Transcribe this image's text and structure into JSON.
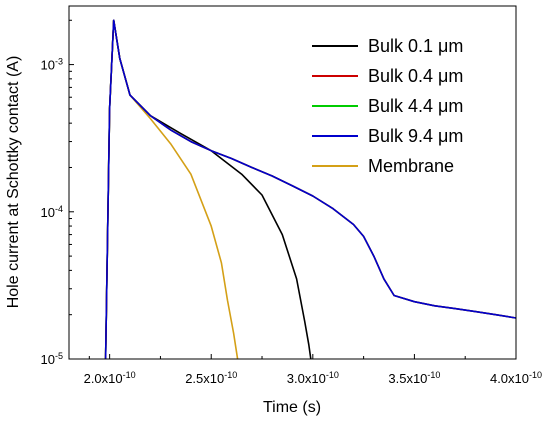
{
  "chart_data": {
    "type": "line",
    "title": "",
    "xlabel": "Time (s)",
    "ylabel": "Hole current at Schottky contact (A)",
    "xlim": [
      1.8e-10,
      4e-10
    ],
    "ylim": [
      1e-05,
      0.0025
    ],
    "yscale": "log",
    "x_ticks": [
      {
        "value": 2e-10,
        "label": "2.0x10-10"
      },
      {
        "value": 2.5e-10,
        "label": "2.5x10-10"
      },
      {
        "value": 3e-10,
        "label": "3.0x10-10"
      },
      {
        "value": 3.5e-10,
        "label": "3.5x10-10"
      },
      {
        "value": 4e-10,
        "label": "4.0x10-10"
      }
    ],
    "y_ticks": [
      {
        "value": 0.001,
        "label": "10-3"
      },
      {
        "value": 0.0001,
        "label": "10-4"
      },
      {
        "value": 1e-05,
        "label": "10-5"
      }
    ],
    "grid": false,
    "legend": "top-right",
    "series": [
      {
        "name": "Bulk 0.1 μm",
        "color": "#000000",
        "x": [
          1.98e-10,
          2e-10,
          2.02e-10,
          2.05e-10,
          2.1e-10,
          2.2e-10,
          2.35e-10,
          2.5e-10,
          2.65e-10,
          2.75e-10,
          2.85e-10,
          2.92e-10,
          2.96e-10,
          2.98e-10,
          2.99e-10
        ],
        "y": [
          1e-05,
          0.0005,
          0.002,
          0.0011,
          0.00062,
          0.00045,
          0.00034,
          0.00026,
          0.00018,
          0.00013,
          7e-05,
          3.5e-05,
          1.8e-05,
          1.25e-05,
          1e-05
        ]
      },
      {
        "name": "Bulk 0.4 μm",
        "color": "#cc0000",
        "x": [
          1.98e-10,
          2e-10,
          2.02e-10,
          2.05e-10,
          2.1e-10,
          2.2e-10,
          2.3e-10,
          2.4e-10,
          2.5e-10,
          2.6e-10,
          2.7e-10,
          2.8e-10,
          2.9e-10,
          3e-10,
          3.1e-10,
          3.2e-10,
          3.25e-10,
          3.3e-10,
          3.35e-10,
          3.4e-10,
          3.5e-10,
          3.6e-10,
          3.7e-10,
          3.8e-10,
          3.9e-10,
          4e-10
        ],
        "y": [
          1e-05,
          0.0005,
          0.002,
          0.0011,
          0.00062,
          0.00045,
          0.00036,
          0.0003,
          0.00026,
          0.00023,
          0.0002,
          0.000175,
          0.00015,
          0.000128,
          0.000105,
          8.2e-05,
          6.8e-05,
          5e-05,
          3.5e-05,
          2.7e-05,
          2.45e-05,
          2.3e-05,
          2.2e-05,
          2.1e-05,
          2e-05,
          1.9e-05
        ]
      },
      {
        "name": "Bulk 4.4 μm",
        "color": "#00cc00",
        "x": [
          1.98e-10,
          2e-10,
          2.02e-10,
          2.05e-10,
          2.1e-10,
          2.2e-10,
          2.3e-10,
          2.4e-10,
          2.5e-10,
          2.6e-10,
          2.7e-10,
          2.8e-10,
          2.9e-10,
          3e-10,
          3.1e-10,
          3.2e-10,
          3.25e-10,
          3.3e-10,
          3.35e-10,
          3.4e-10,
          3.5e-10,
          3.6e-10,
          3.7e-10,
          3.8e-10,
          3.9e-10,
          4e-10
        ],
        "y": [
          1e-05,
          0.0005,
          0.002,
          0.0011,
          0.00062,
          0.00045,
          0.00036,
          0.0003,
          0.00026,
          0.00023,
          0.0002,
          0.000175,
          0.00015,
          0.000128,
          0.000105,
          8.2e-05,
          6.8e-05,
          5e-05,
          3.5e-05,
          2.7e-05,
          2.45e-05,
          2.3e-05,
          2.2e-05,
          2.1e-05,
          2e-05,
          1.9e-05
        ]
      },
      {
        "name": "Bulk 9.4 μm",
        "color": "#0000cc",
        "x": [
          1.98e-10,
          2e-10,
          2.02e-10,
          2.05e-10,
          2.1e-10,
          2.2e-10,
          2.3e-10,
          2.4e-10,
          2.5e-10,
          2.6e-10,
          2.7e-10,
          2.8e-10,
          2.9e-10,
          3e-10,
          3.1e-10,
          3.2e-10,
          3.25e-10,
          3.3e-10,
          3.35e-10,
          3.4e-10,
          3.5e-10,
          3.6e-10,
          3.7e-10,
          3.8e-10,
          3.9e-10,
          4e-10
        ],
        "y": [
          1e-05,
          0.0005,
          0.002,
          0.0011,
          0.00062,
          0.00045,
          0.00036,
          0.0003,
          0.00026,
          0.00023,
          0.0002,
          0.000175,
          0.00015,
          0.000128,
          0.000105,
          8.2e-05,
          6.8e-05,
          5e-05,
          3.5e-05,
          2.7e-05,
          2.45e-05,
          2.3e-05,
          2.2e-05,
          2.1e-05,
          2e-05,
          1.9e-05
        ]
      },
      {
        "name": "Membrane",
        "color": "#d4a017",
        "x": [
          1.98e-10,
          2e-10,
          2.02e-10,
          2.05e-10,
          2.1e-10,
          2.2e-10,
          2.3e-10,
          2.4e-10,
          2.5e-10,
          2.55e-10,
          2.58e-10,
          2.61e-10,
          2.63e-10
        ],
        "y": [
          1e-05,
          0.0005,
          0.002,
          0.0011,
          0.00062,
          0.00043,
          0.00029,
          0.00018,
          8e-05,
          4.5e-05,
          2.5e-05,
          1.5e-05,
          1e-05
        ]
      }
    ]
  }
}
